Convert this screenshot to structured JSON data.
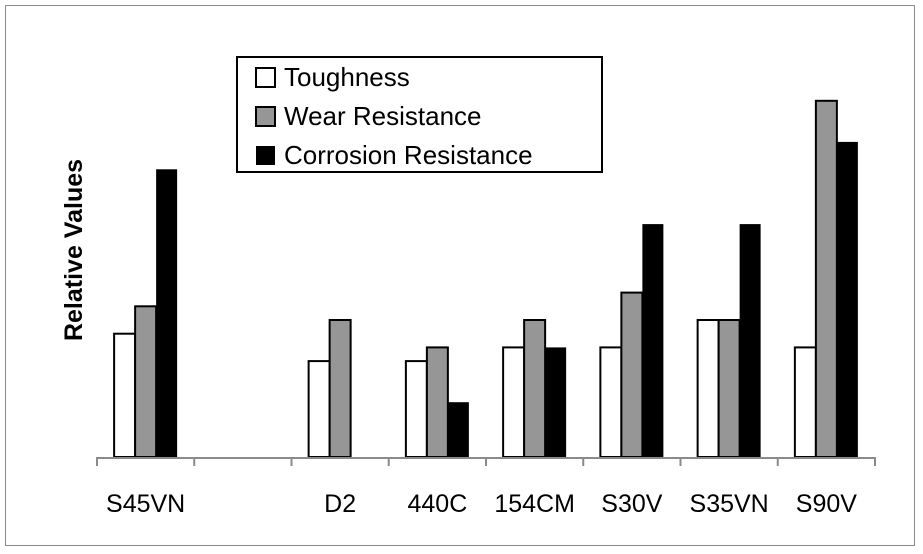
{
  "chart_data": {
    "type": "bar",
    "title": "",
    "xlabel": "",
    "ylabel": "Relative Values",
    "ylim": [
      0,
      30
    ],
    "grid": false,
    "legend_position": "top-center",
    "categories": [
      "S45VN",
      "",
      "D2",
      "440C",
      "154CM",
      "S30V",
      "S35VN",
      "S90V"
    ],
    "series": [
      {
        "name": "Toughness",
        "color": "#ffffff",
        "values": [
          9,
          null,
          7,
          7,
          8,
          8,
          10,
          8
        ]
      },
      {
        "name": "Wear Resistance",
        "color": "#969696",
        "values": [
          11,
          null,
          10,
          8,
          10,
          12,
          10,
          26
        ]
      },
      {
        "name": "Corrosion Resistance",
        "color": "#000000",
        "values": [
          21,
          null,
          null,
          4,
          8,
          17,
          17,
          23
        ]
      }
    ]
  }
}
